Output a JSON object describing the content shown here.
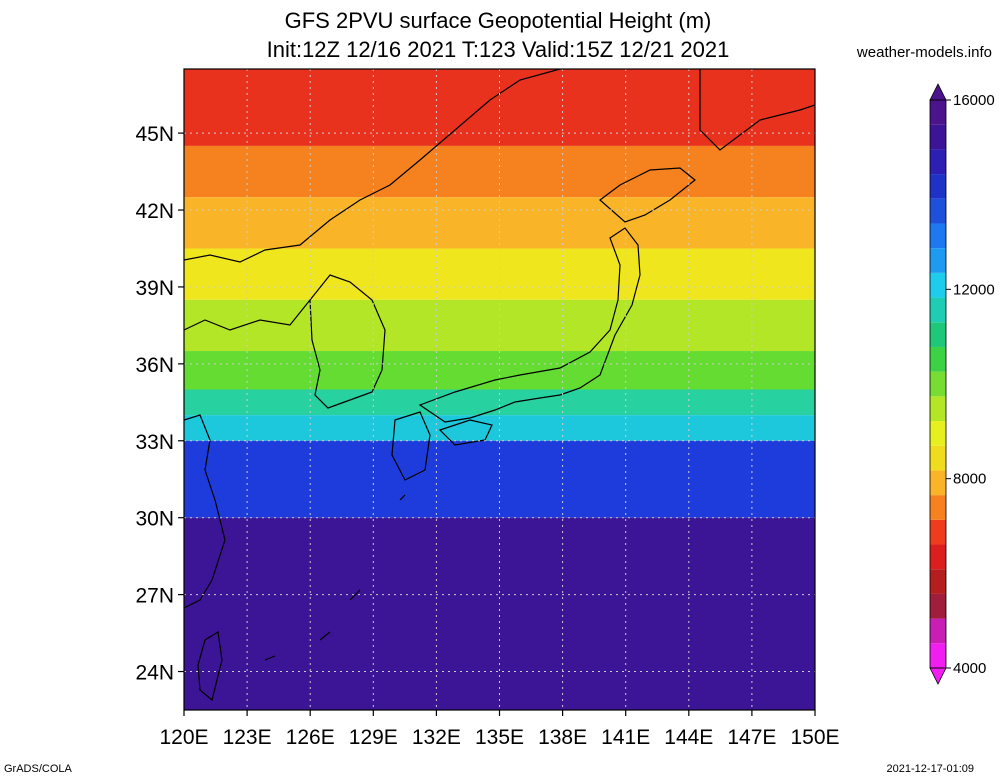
{
  "title_line1": "GFS 2PVU surface Geopotential Height (m)",
  "title_line2": "Init:12Z 12/16 2021 T:123 Valid:15Z 12/21 2021",
  "watermark": "weather-models.info",
  "footer_left": "GrADS/COLA",
  "footer_right": "2021-12-17-01:09",
  "map": {
    "lon_range": [
      120,
      150
    ],
    "lat_range": [
      22.5,
      47.5
    ],
    "lat_ticks": [
      "45N",
      "42N",
      "39N",
      "36N",
      "33N",
      "30N",
      "27N",
      "24N"
    ],
    "lat_values": [
      45,
      42,
      39,
      36,
      33,
      30,
      27,
      24
    ],
    "lon_ticks": [
      "120E",
      "123E",
      "126E",
      "129E",
      "132E",
      "135E",
      "138E",
      "141E",
      "144E",
      "147E",
      "150E"
    ],
    "lon_values": [
      120,
      123,
      126,
      129,
      132,
      135,
      138,
      141,
      144,
      147,
      150
    ],
    "field_bands": [
      {
        "lat_top": 47.5,
        "lat_bottom": 44.5,
        "color": "#e8321e",
        "label": "north-red"
      },
      {
        "lat_top": 44.5,
        "lat_bottom": 42.5,
        "color": "#f5821e",
        "label": "orange"
      },
      {
        "lat_top": 42.5,
        "lat_bottom": 40.5,
        "color": "#fab428",
        "label": "yellow-orange"
      },
      {
        "lat_top": 40.5,
        "lat_bottom": 38.5,
        "color": "#f0e61e",
        "label": "yellow"
      },
      {
        "lat_top": 38.5,
        "lat_bottom": 36.5,
        "color": "#b4e628",
        "label": "yellow-green"
      },
      {
        "lat_top": 36.5,
        "lat_bottom": 35.0,
        "color": "#64dc32",
        "label": "green"
      },
      {
        "lat_top": 35.0,
        "lat_bottom": 34.0,
        "color": "#28d2a0",
        "label": "teal"
      },
      {
        "lat_top": 34.0,
        "lat_bottom": 33.0,
        "color": "#1ec8dc",
        "label": "cyan"
      },
      {
        "lat_top": 33.0,
        "lat_bottom": 30.0,
        "color": "#1e3cdc",
        "label": "blue"
      },
      {
        "lat_top": 30.0,
        "lat_bottom": 22.5,
        "color": "#3c1496",
        "label": "indigo"
      }
    ]
  },
  "colorbar": {
    "min": 4000,
    "max": 16000,
    "labels": [
      "16000",
      "12000",
      "8000",
      "4000"
    ],
    "label_values": [
      16000,
      12000,
      8000,
      4000
    ],
    "colors": [
      "#f01ef0",
      "#c81eb4",
      "#a01e3c",
      "#b41e1e",
      "#dc1e1e",
      "#f03c1e",
      "#f5821e",
      "#fab428",
      "#f0dc1e",
      "#e6f01e",
      "#b4e628",
      "#78dc32",
      "#3cd246",
      "#1ec878",
      "#1ecdb4",
      "#1ecdeb",
      "#1e9bf0",
      "#1e78f0",
      "#1e50dc",
      "#1e32c8",
      "#2d1eb4",
      "#3c1496",
      "#4b148c"
    ]
  }
}
